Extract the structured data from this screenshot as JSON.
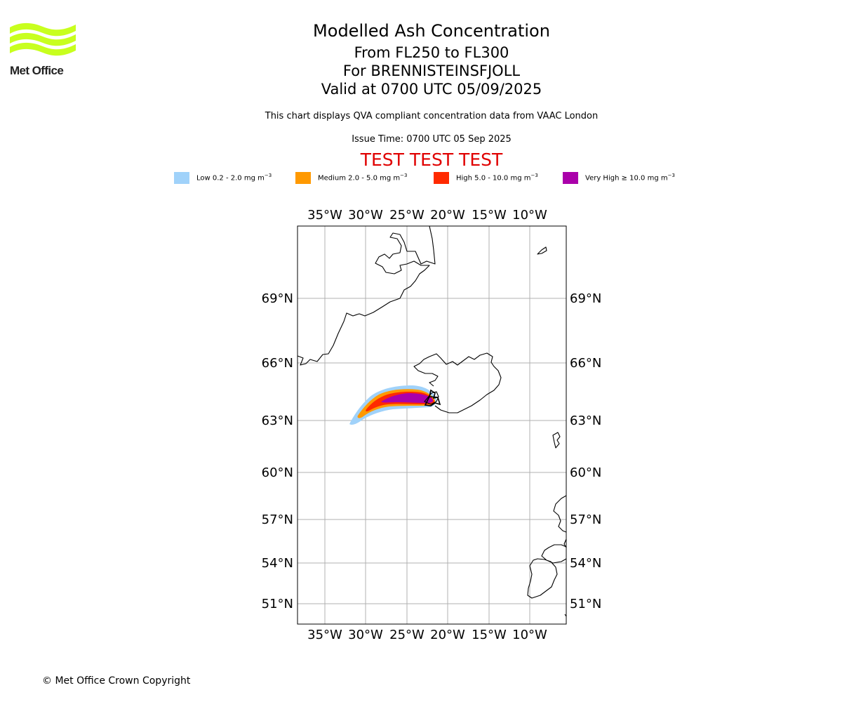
{
  "logo": {
    "text": "Met Office",
    "color": "#c8ff1e"
  },
  "header": {
    "title": "Modelled Ash Concentration",
    "levels": "From FL250 to FL300",
    "volcano": "For BRENNISTEINSFJOLL",
    "valid": "Valid at 0700 UTC 05/09/2025",
    "note": "This chart displays QVA compliant concentration data from VAAC London",
    "issue": "Issue Time: 0700 UTC 05 Sep 2025",
    "test_banner": "TEST TEST TEST"
  },
  "legend": [
    {
      "label": "Low 0.2 - 2.0 mg m",
      "unit_power": "−3",
      "color": "#a0d2fa",
      "icon": "low-swatch"
    },
    {
      "label": "Medium 2.0 - 5.0 mg m",
      "unit_power": "−3",
      "color": "#ff9900",
      "icon": "medium-swatch"
    },
    {
      "label": "High 5.0 - 10.0 mg m",
      "unit_power": "−3",
      "color": "#ff2a00",
      "icon": "high-swatch"
    },
    {
      "label": "Very High  ≥  10.0 mg m",
      "unit_power": "−3",
      "color": "#aa00aa",
      "icon": "very-high-swatch"
    }
  ],
  "map": {
    "lon_ticks": [
      "35°W",
      "30°W",
      "25°W",
      "20°W",
      "15°W",
      "10°W"
    ],
    "lat_ticks": [
      "69°N",
      "66°N",
      "63°N",
      "60°N",
      "57°N",
      "54°N",
      "51°N"
    ],
    "gridline_color": "#b0b0b0",
    "coastline_color": "#000000"
  },
  "footer": {
    "copyright": "© Met Office Crown Copyright"
  }
}
